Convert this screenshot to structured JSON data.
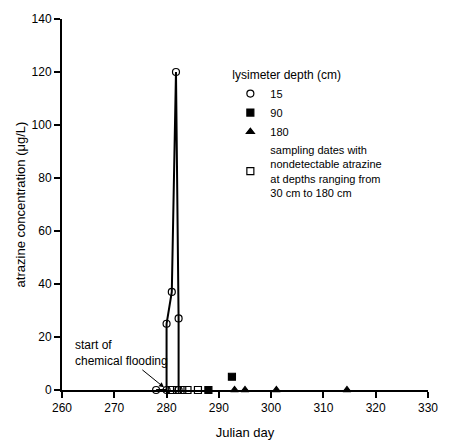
{
  "chart_data": {
    "type": "scatter",
    "x_label": "Julian day",
    "y_label": "atrazine concentration (μg/L)",
    "legend_title": "lysimeter depth (cm)",
    "xlim": [
      260,
      330
    ],
    "xticks": [
      260,
      270,
      280,
      290,
      300,
      310,
      320,
      330
    ],
    "ylim": [
      0,
      140
    ],
    "yticks": [
      0,
      20,
      40,
      60,
      80,
      100,
      120,
      140
    ],
    "grid": false,
    "legend": "upper right",
    "annotations": [
      {
        "text": "start of chemical flooding",
        "x": 279.5,
        "y": 1
      }
    ],
    "series": [
      {
        "name": "15",
        "color": "#000000",
        "marker": "circle-open",
        "line_style": "solid",
        "x": [
          278,
          280,
          280,
          281,
          281.8,
          282.3,
          282.3
        ],
        "values": [
          0,
          0,
          25,
          37,
          120,
          27,
          0
        ]
      },
      {
        "name": "90",
        "color": "#000000",
        "marker": "square",
        "line_style": "none",
        "x": [
          288,
          292.5
        ],
        "values": [
          0,
          5
        ]
      },
      {
        "name": "180",
        "color": "#000000",
        "marker": "triangle-up",
        "line_style": "none",
        "x": [
          293,
          295,
          301,
          314.5
        ],
        "values": [
          0,
          0,
          0,
          0
        ]
      },
      {
        "name": "sampling dates with nondetectable atrazine at depths ranging from 30 cm to 180 cm",
        "color": "#000000",
        "marker": "square-open",
        "line_style": "none",
        "x": [
          281,
          282,
          283,
          284,
          286
        ],
        "values": [
          0,
          0,
          0,
          0,
          0
        ]
      }
    ]
  }
}
